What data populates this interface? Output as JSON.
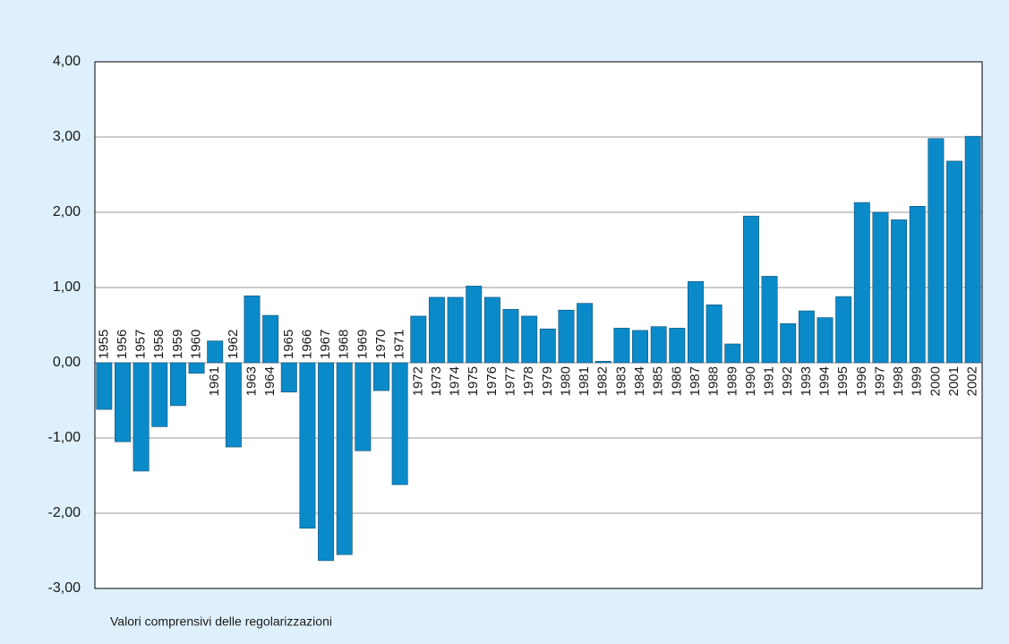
{
  "chart_data": {
    "type": "bar",
    "note": "Valori comprensivi delle regolarizzazioni",
    "categories": [
      "1955",
      "1956",
      "1957",
      "1958",
      "1959",
      "1960",
      "1961",
      "1962",
      "1963",
      "1964",
      "1965",
      "1966",
      "1967",
      "1968",
      "1969",
      "1970",
      "1971",
      "1972",
      "1973",
      "1974",
      "1975",
      "1976",
      "1977",
      "1978",
      "1979",
      "1980",
      "1981",
      "1982",
      "1983",
      "1984",
      "1985",
      "1986",
      "1987",
      "1988",
      "1989",
      "1990",
      "1991",
      "1992",
      "1993",
      "1994",
      "1995",
      "1996",
      "1997",
      "1998",
      "1999",
      "2000",
      "2001",
      "2002"
    ],
    "values": [
      -0.62,
      -1.05,
      -1.44,
      -0.85,
      -0.57,
      -0.14,
      0.29,
      -1.12,
      0.89,
      0.63,
      -0.39,
      -2.2,
      -2.63,
      -2.55,
      -1.17,
      -0.37,
      -1.62,
      0.62,
      0.87,
      0.87,
      1.02,
      0.87,
      0.71,
      0.62,
      0.45,
      0.7,
      0.79,
      0.02,
      0.46,
      0.43,
      0.48,
      0.46,
      1.08,
      0.77,
      0.25,
      1.95,
      1.15,
      0.52,
      0.69,
      0.6,
      0.88,
      2.13,
      2.0,
      1.9,
      2.08,
      2.98,
      2.68,
      3.01
    ],
    "color": "#0a8ac9",
    "ylim": [
      -3,
      4
    ],
    "yticks": [
      {
        "value": -3,
        "label": "-3,00"
      },
      {
        "value": -2,
        "label": "-2,00"
      },
      {
        "value": -1,
        "label": "-1,00"
      },
      {
        "value": 0,
        "label": "0,00"
      },
      {
        "value": 1,
        "label": "1,00"
      },
      {
        "value": 2,
        "label": "2,00"
      },
      {
        "value": 3,
        "label": "3,00"
      },
      {
        "value": 4,
        "label": "4,00"
      }
    ],
    "grid": true
  }
}
